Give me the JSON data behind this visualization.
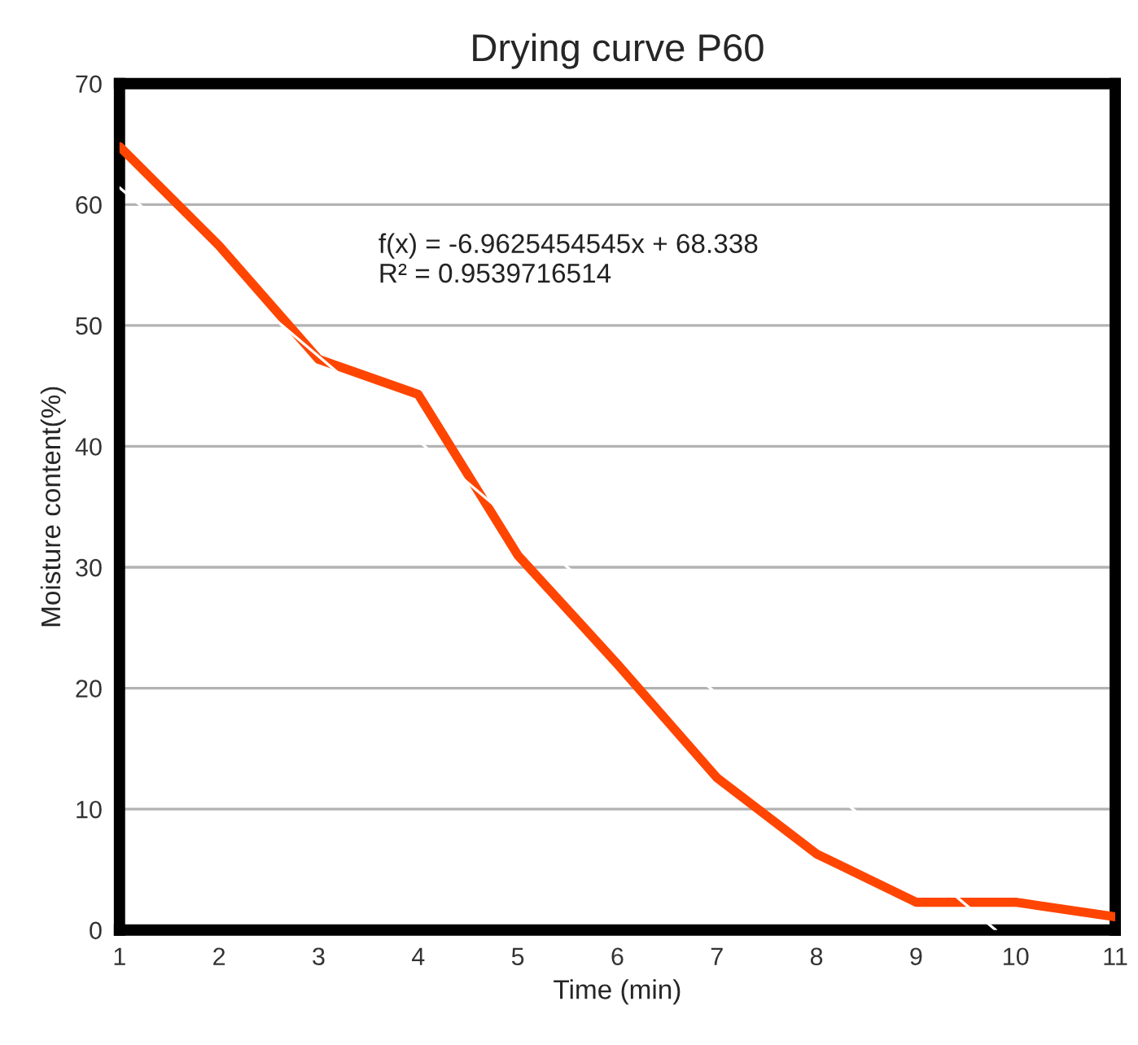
{
  "chart_data": {
    "type": "line",
    "title": "Drying curve P60",
    "xlabel": "Time (min)",
    "ylabel": "Moisture content(%)",
    "x": [
      1,
      2,
      3,
      4,
      5,
      6,
      7,
      8,
      9,
      10,
      11
    ],
    "series": [
      {
        "color": "#ff4500",
        "values": [
          64.8,
          56.6,
          47.2,
          44.3,
          31.0,
          22.0,
          12.6,
          6.3,
          2.3,
          2.3,
          1.1
        ]
      },
      {
        "type": "line",
        "color": "#ffffff",
        "x": [
          1,
          9.8
        ],
        "values": [
          61.4,
          0
        ]
      }
    ],
    "annotations": [
      "f(x) = -6.9625454545x + 68.338",
      "R² = 0.9539716514"
    ],
    "xlim": [
      1,
      11
    ],
    "ylim": [
      0,
      70
    ],
    "xticks": [
      1,
      2,
      3,
      4,
      5,
      6,
      7,
      8,
      9,
      10,
      11
    ],
    "yticks": [
      0,
      10,
      20,
      30,
      40,
      50,
      60,
      70
    ],
    "grid": "y",
    "legend": false,
    "marker": "none",
    "line_style": "solid"
  }
}
